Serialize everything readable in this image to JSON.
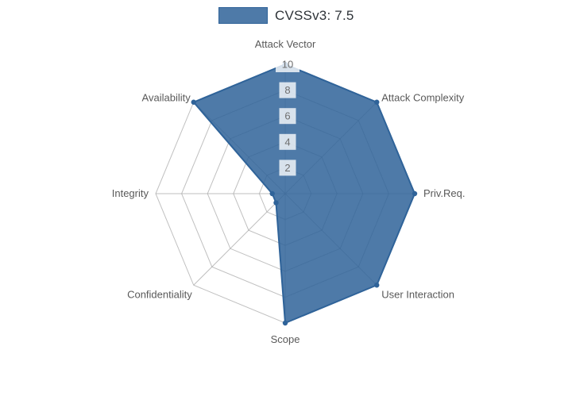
{
  "legend": {
    "label": "CVSSv3: 7.5"
  },
  "chart_data": {
    "type": "radar",
    "title": "",
    "categories": [
      "Attack Vector",
      "Attack Complexity",
      "Priv.Req.",
      "User Interaction",
      "Scope",
      "Confidentiality",
      "Integrity",
      "Availability"
    ],
    "series": [
      {
        "name": "CVSSv3: 7.5",
        "values": [
          10,
          10,
          10,
          10,
          10,
          1,
          1,
          10
        ]
      }
    ],
    "radial_ticks": [
      "2",
      "4",
      "6",
      "8",
      "10"
    ],
    "range": [
      0,
      10
    ],
    "start_angle": "top",
    "direction": "clockwise",
    "grid": "polygon-web",
    "legend_position": "top-center",
    "colors": {
      "series_color": "#2f6399",
      "series_fill_opacity": 0.85,
      "grid": "#b0b0b0",
      "tick_text": "#6e6e6e",
      "tick_bg": "#ffffff",
      "label_text": "#595959",
      "legend_text": "#2e3338"
    }
  }
}
